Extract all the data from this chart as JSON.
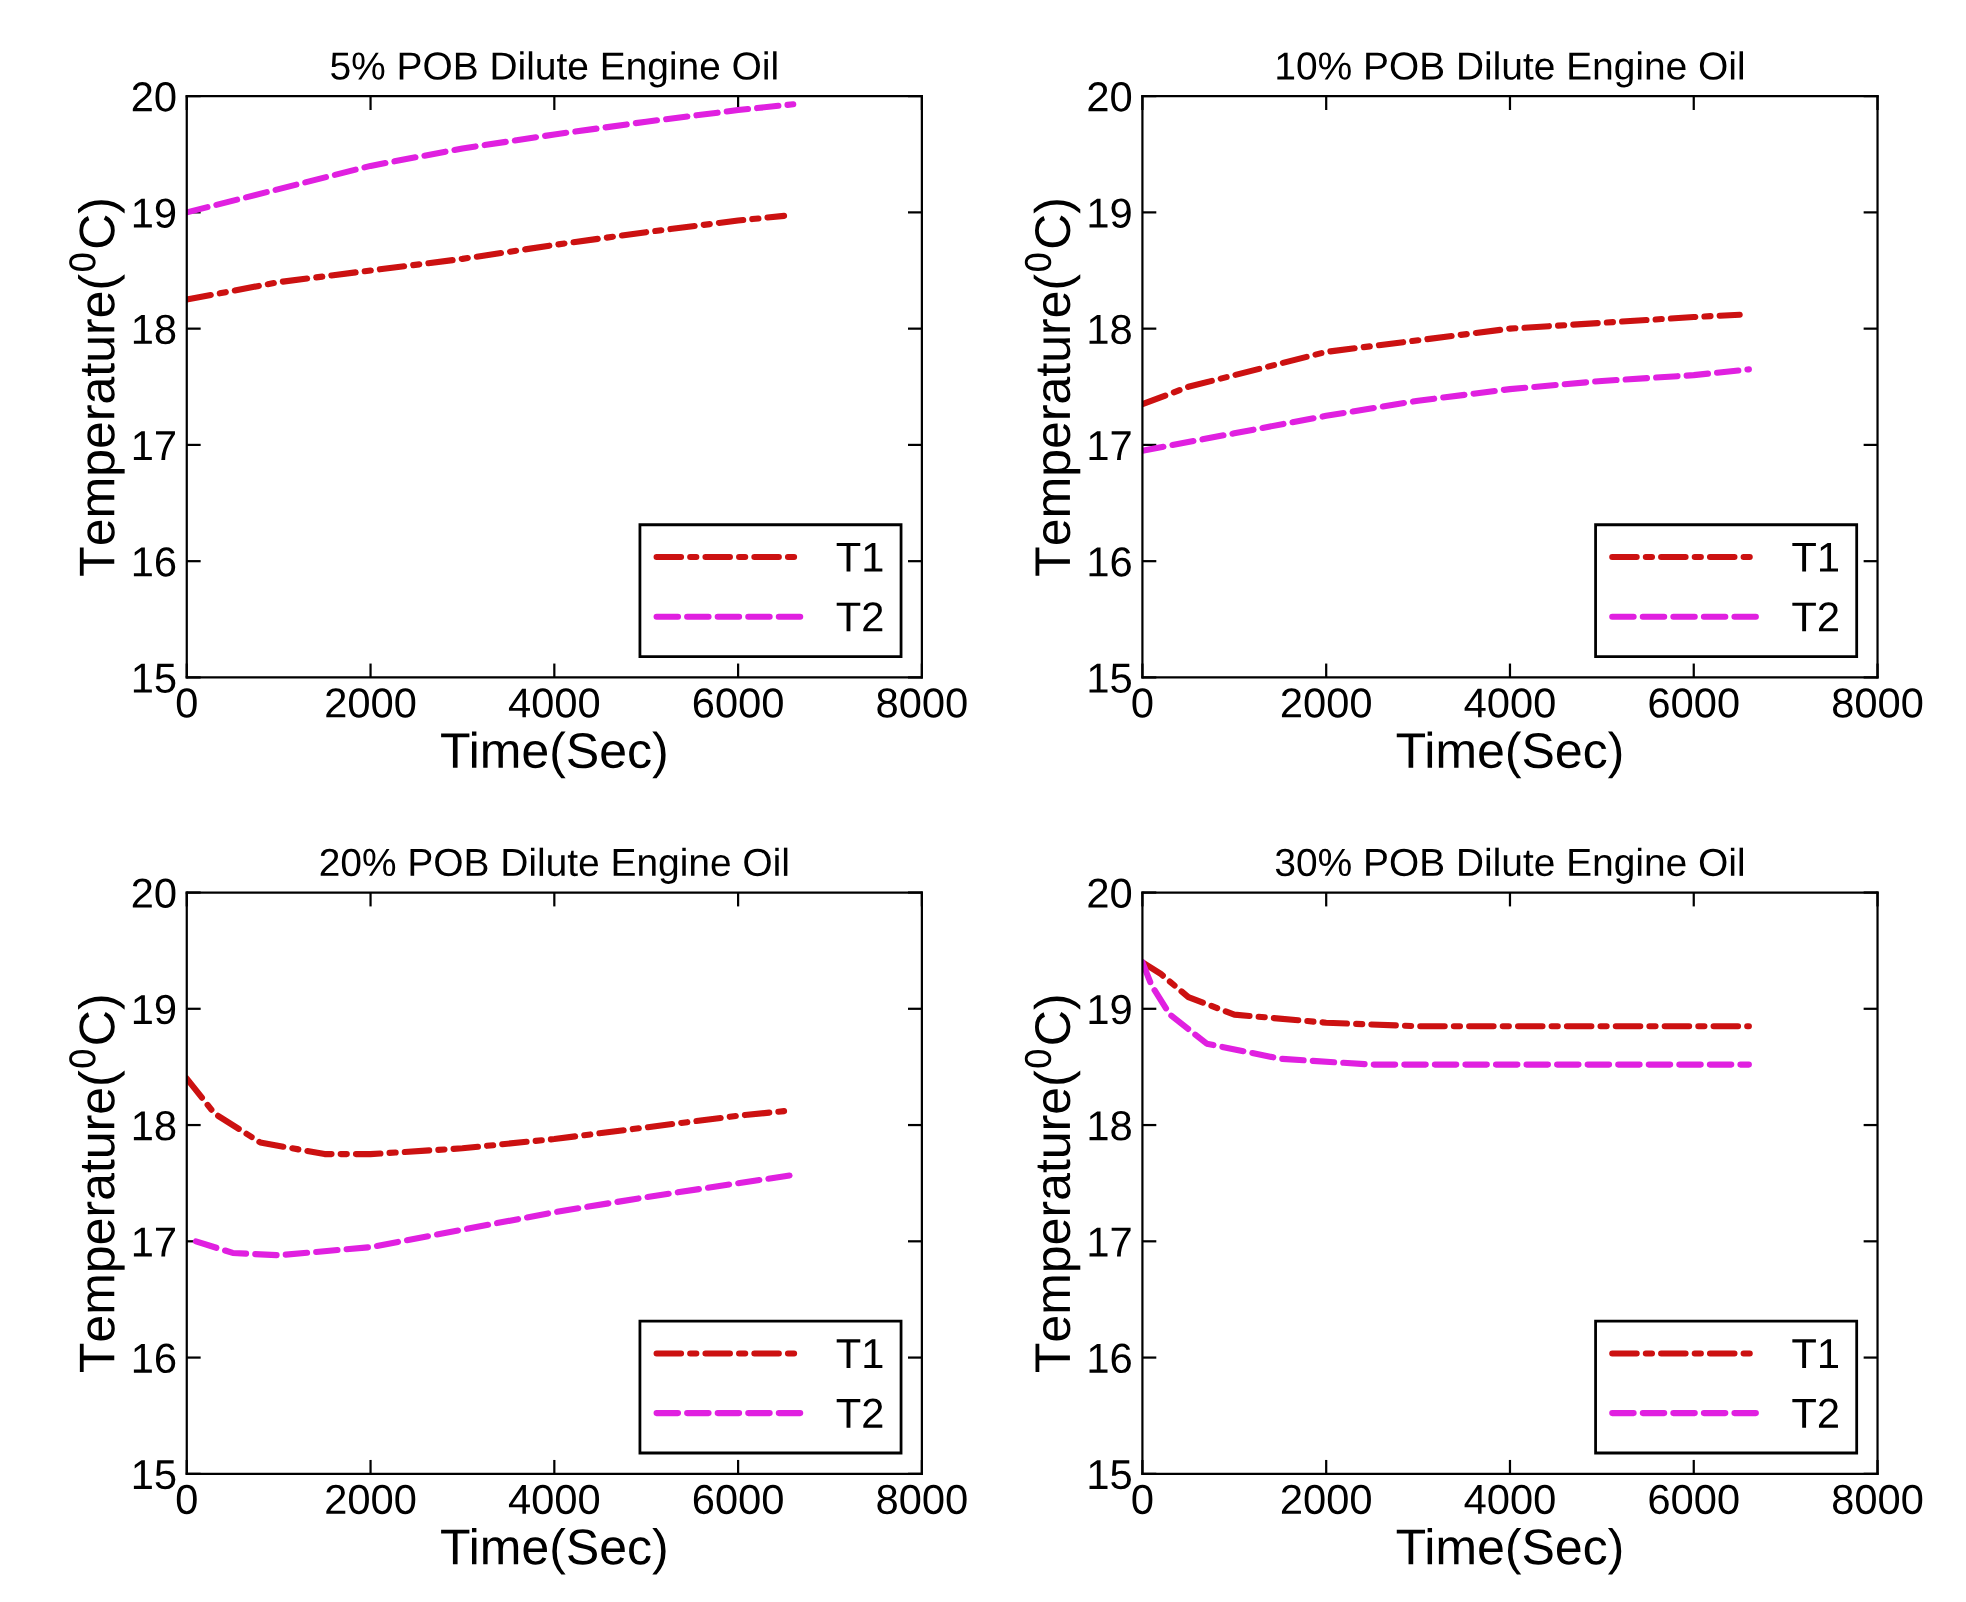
{
  "chart_data": [
    {
      "type": "line",
      "title": "5% POB Dilute Engine Oil",
      "xlabel": "Time(Sec)",
      "ylabel": "Temperature($^{0}$C)",
      "xlim": [
        0,
        8000
      ],
      "xticks": [
        0,
        2000,
        4000,
        6000,
        8000
      ],
      "ylim": [
        15,
        20
      ],
      "yticks": [
        15,
        16,
        17,
        18,
        19,
        20
      ],
      "legend": "bottom right",
      "grid": false,
      "series": [
        {
          "name": "T1",
          "color": "#cc1111",
          "line_style": "dashdot",
          "x": [
            0,
            1000,
            2000,
            3000,
            4000,
            5000,
            6000,
            6500
          ],
          "values": [
            18.25,
            18.4,
            18.5,
            18.6,
            18.72,
            18.83,
            18.93,
            18.97
          ]
        },
        {
          "name": "T2",
          "color": "#e020e0",
          "line_style": "dashed",
          "x": [
            0,
            1000,
            2000,
            3000,
            4000,
            5000,
            6000,
            6600
          ],
          "values": [
            19.0,
            19.2,
            19.4,
            19.55,
            19.67,
            19.78,
            19.88,
            19.93
          ]
        }
      ]
    },
    {
      "type": "line",
      "title": "10% POB Dilute Engine Oil",
      "xlabel": "Time(Sec)",
      "ylabel": "Temperature($^{0}$C)",
      "xlim": [
        0,
        8000
      ],
      "xticks": [
        0,
        2000,
        4000,
        6000,
        8000
      ],
      "ylim": [
        15,
        20
      ],
      "yticks": [
        15,
        16,
        17,
        18,
        19,
        20
      ],
      "legend": "bottom right",
      "grid": false,
      "series": [
        {
          "name": "T1",
          "color": "#cc1111",
          "line_style": "dashdot",
          "x": [
            0,
            500,
            1000,
            2000,
            3000,
            4000,
            5000,
            6000,
            6500
          ],
          "values": [
            17.35,
            17.5,
            17.6,
            17.8,
            17.9,
            18.0,
            18.05,
            18.1,
            18.12
          ]
        },
        {
          "name": "T2",
          "color": "#e020e0",
          "line_style": "dashed",
          "x": [
            0,
            1000,
            2000,
            3000,
            4000,
            5000,
            6000,
            6600
          ],
          "values": [
            16.95,
            17.1,
            17.25,
            17.38,
            17.48,
            17.55,
            17.6,
            17.65
          ]
        }
      ]
    },
    {
      "type": "line",
      "title": "20% POB Dilute Engine Oil",
      "xlabel": "Time(Sec)",
      "ylabel": "Temperature($^{0}$C)",
      "xlim": [
        0,
        8000
      ],
      "xticks": [
        0,
        2000,
        4000,
        6000,
        8000
      ],
      "ylim": [
        15,
        20
      ],
      "yticks": [
        15,
        16,
        17,
        18,
        19,
        20
      ],
      "legend": "bottom right",
      "grid": false,
      "series": [
        {
          "name": "T1",
          "color": "#cc1111",
          "line_style": "dashdot",
          "x": [
            0,
            300,
            800,
            1500,
            2000,
            3000,
            4000,
            5000,
            6000,
            6500
          ],
          "values": [
            18.4,
            18.1,
            17.85,
            17.75,
            17.75,
            17.8,
            17.88,
            17.98,
            18.08,
            18.12
          ]
        },
        {
          "name": "T2",
          "color": "#e020e0",
          "line_style": "dashed",
          "x": [
            100,
            500,
            1000,
            2000,
            3000,
            4000,
            5000,
            6000,
            6600
          ],
          "values": [
            17.0,
            16.9,
            16.88,
            16.95,
            17.1,
            17.25,
            17.38,
            17.5,
            17.57
          ]
        }
      ]
    },
    {
      "type": "line",
      "title": "30% POB Dilute Engine Oil",
      "xlabel": "Time(Sec)",
      "ylabel": "Temperature($^{0}$C)",
      "xlim": [
        0,
        8000
      ],
      "xticks": [
        0,
        2000,
        4000,
        6000,
        8000
      ],
      "ylim": [
        15,
        20
      ],
      "yticks": [
        15,
        16,
        17,
        18,
        19,
        20
      ],
      "legend": "bottom right",
      "grid": false,
      "series": [
        {
          "name": "T1",
          "color": "#cc1111",
          "line_style": "dashdot",
          "x": [
            0,
            200,
            500,
            1000,
            2000,
            3000,
            6600
          ],
          "values": [
            19.4,
            19.3,
            19.1,
            18.95,
            18.88,
            18.85,
            18.85
          ]
        },
        {
          "name": "T2",
          "color": "#e020e0",
          "line_style": "dashed",
          "x": [
            0,
            100,
            300,
            700,
            1500,
            2500,
            6600
          ],
          "values": [
            19.4,
            19.2,
            18.95,
            18.7,
            18.57,
            18.52,
            18.52
          ]
        }
      ]
    }
  ]
}
